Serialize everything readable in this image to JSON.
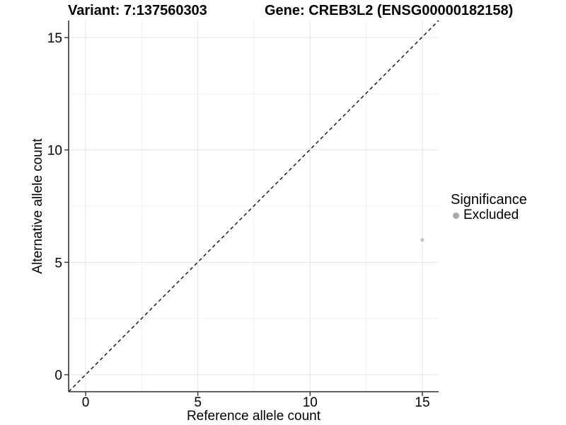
{
  "chart_data": {
    "type": "scatter",
    "title_left": "Variant: 7:137560303",
    "title_right": "Gene: CREB3L2 (ENSG00000182158)",
    "xlabel": "Reference allele count",
    "ylabel": "Alternative allele count",
    "xlim": [
      -0.79,
      15.79
    ],
    "ylim": [
      -0.79,
      15.79
    ],
    "x_ticks": [
      0,
      5,
      10,
      15
    ],
    "y_ticks": [
      0,
      5,
      10,
      15
    ],
    "x_minor_ticks": [
      2.5,
      7.5,
      12.5
    ],
    "y_minor_ticks": [
      2.5,
      7.5,
      12.5
    ],
    "grid": "on",
    "reference_line": {
      "type": "identity y = x",
      "style": "dashed"
    },
    "series": [
      {
        "name": "Excluded",
        "points": [
          {
            "x": 15,
            "y": 6
          }
        ]
      }
    ],
    "legend": {
      "position": "right",
      "title": "Significance",
      "entries": [
        {
          "label": "Excluded"
        }
      ]
    }
  },
  "colors": {
    "background": "#ffffff",
    "text": "#000000",
    "axis": "#333333",
    "grid_major": "#e4e4e4",
    "grid_minor": "#f1f1f1",
    "reference_line": "#111111",
    "point": "#c4c4c4",
    "legend_key": "#a9a9a9"
  }
}
